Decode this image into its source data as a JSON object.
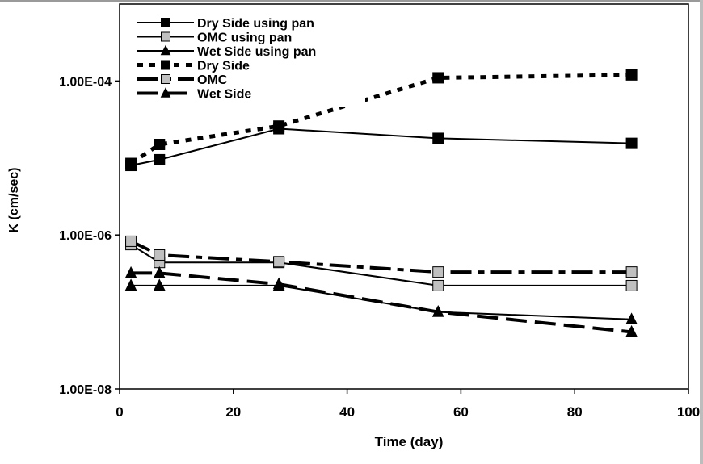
{
  "chart_data": {
    "type": "line",
    "title": "",
    "xlabel": "Time (day)",
    "ylabel": "K (cm/sec)",
    "xlim": [
      0,
      100
    ],
    "ylim": [
      1e-08,
      0.001
    ],
    "y_scale": "log",
    "grid": false,
    "legend_placement": "top-left",
    "x_ticks": [
      0,
      20,
      40,
      60,
      80,
      100
    ],
    "x_tick_labels": [
      "0",
      "20",
      "40",
      "60",
      "80",
      "100"
    ],
    "y_ticks": [
      1e-08,
      1e-06,
      0.0001
    ],
    "y_tick_labels": [
      "1.00E-08",
      "1.00E-06",
      "1.00E-04"
    ],
    "series": [
      {
        "name": "Dry Side using pan",
        "marker": "square",
        "fill": "#000000",
        "line": "solid",
        "width": 2,
        "x": [
          2,
          7,
          28,
          56,
          90
        ],
        "y": [
          8e-06,
          9.5e-06,
          2.4e-05,
          1.8e-05,
          1.55e-05
        ]
      },
      {
        "name": "OMC using pan",
        "marker": "square",
        "fill": "#c0c0c0",
        "line": "solid",
        "width": 2,
        "x": [
          2,
          7,
          28,
          56,
          90
        ],
        "y": [
          7.5e-07,
          4.4e-07,
          4.4e-07,
          2.2e-07,
          2.2e-07
        ]
      },
      {
        "name": "Wet Side using pan",
        "marker": "triangle",
        "fill": "#000000",
        "line": "solid",
        "width": 2,
        "x": [
          2,
          7,
          28,
          56,
          90
        ],
        "y": [
          2.2e-07,
          2.2e-07,
          2.2e-07,
          1e-07,
          8e-08
        ]
      },
      {
        "name": "Dry Side",
        "marker": "square",
        "fill": "#000000",
        "line": "dotted",
        "width": 5,
        "x": [
          2,
          7,
          28,
          56,
          90
        ],
        "y": [
          8.5e-06,
          1.5e-05,
          2.6e-05,
          0.00011,
          0.00012
        ]
      },
      {
        "name": "OMC",
        "marker": "square",
        "fill": "#c0c0c0",
        "line": "dashdot",
        "width": 4,
        "x": [
          2,
          7,
          28,
          56,
          90
        ],
        "y": [
          8.3e-07,
          5.5e-07,
          4.5e-07,
          3.3e-07,
          3.3e-07
        ]
      },
      {
        "name": "Wet Side",
        "marker": "triangle",
        "fill": "#000000",
        "line": "dashed",
        "width": 4,
        "x": [
          2,
          7,
          28,
          56,
          90
        ],
        "y": [
          3.2e-07,
          3.2e-07,
          2.3e-07,
          1e-07,
          5.5e-08
        ]
      }
    ]
  }
}
